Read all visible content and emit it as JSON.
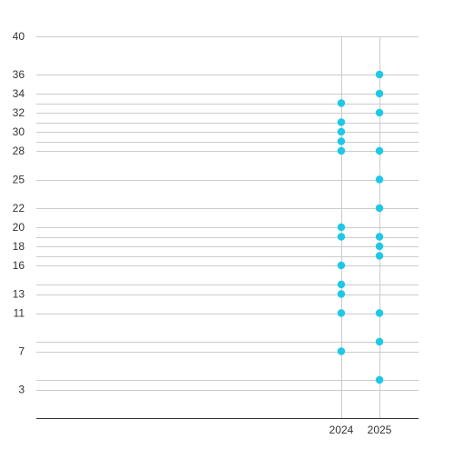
{
  "chart_data": {
    "type": "scatter",
    "title": "",
    "xlabel": "",
    "ylabel": "",
    "x_categories": [
      2024,
      2025
    ],
    "x_tick_labels": [
      "2024",
      "2025"
    ],
    "ylim": [
      0,
      40
    ],
    "y_tick_labels": [
      "3",
      "7",
      "11",
      "13",
      "16",
      "18",
      "20",
      "22",
      "25",
      "28",
      "30",
      "32",
      "34",
      "36",
      "40"
    ],
    "y_tick_values": [
      3,
      7,
      11,
      13,
      16,
      18,
      20,
      22,
      25,
      28,
      30,
      32,
      34,
      36,
      40
    ],
    "y_gridlines": [
      3,
      4,
      7,
      8,
      11,
      13,
      14,
      16,
      17,
      18,
      19,
      20,
      22,
      25,
      28,
      29,
      30,
      31,
      32,
      33,
      34,
      36,
      40
    ],
    "grid": true,
    "point_color": "#1ec8e8",
    "gridline_color": "#cccccc",
    "axis_color": "#333333",
    "series": [
      {
        "points": [
          {
            "x": 2024,
            "y": 7
          },
          {
            "x": 2024,
            "y": 11
          },
          {
            "x": 2024,
            "y": 13
          },
          {
            "x": 2024,
            "y": 14
          },
          {
            "x": 2024,
            "y": 16
          },
          {
            "x": 2024,
            "y": 19
          },
          {
            "x": 2024,
            "y": 20
          },
          {
            "x": 2024,
            "y": 28
          },
          {
            "x": 2024,
            "y": 29
          },
          {
            "x": 2024,
            "y": 30
          },
          {
            "x": 2024,
            "y": 31
          },
          {
            "x": 2024,
            "y": 33
          },
          {
            "x": 2025,
            "y": 4
          },
          {
            "x": 2025,
            "y": 8
          },
          {
            "x": 2025,
            "y": 11
          },
          {
            "x": 2025,
            "y": 17
          },
          {
            "x": 2025,
            "y": 18
          },
          {
            "x": 2025,
            "y": 19
          },
          {
            "x": 2025,
            "y": 22
          },
          {
            "x": 2025,
            "y": 25
          },
          {
            "x": 2025,
            "y": 28
          },
          {
            "x": 2025,
            "y": 32
          },
          {
            "x": 2025,
            "y": 34
          },
          {
            "x": 2025,
            "y": 36
          }
        ]
      }
    ]
  }
}
